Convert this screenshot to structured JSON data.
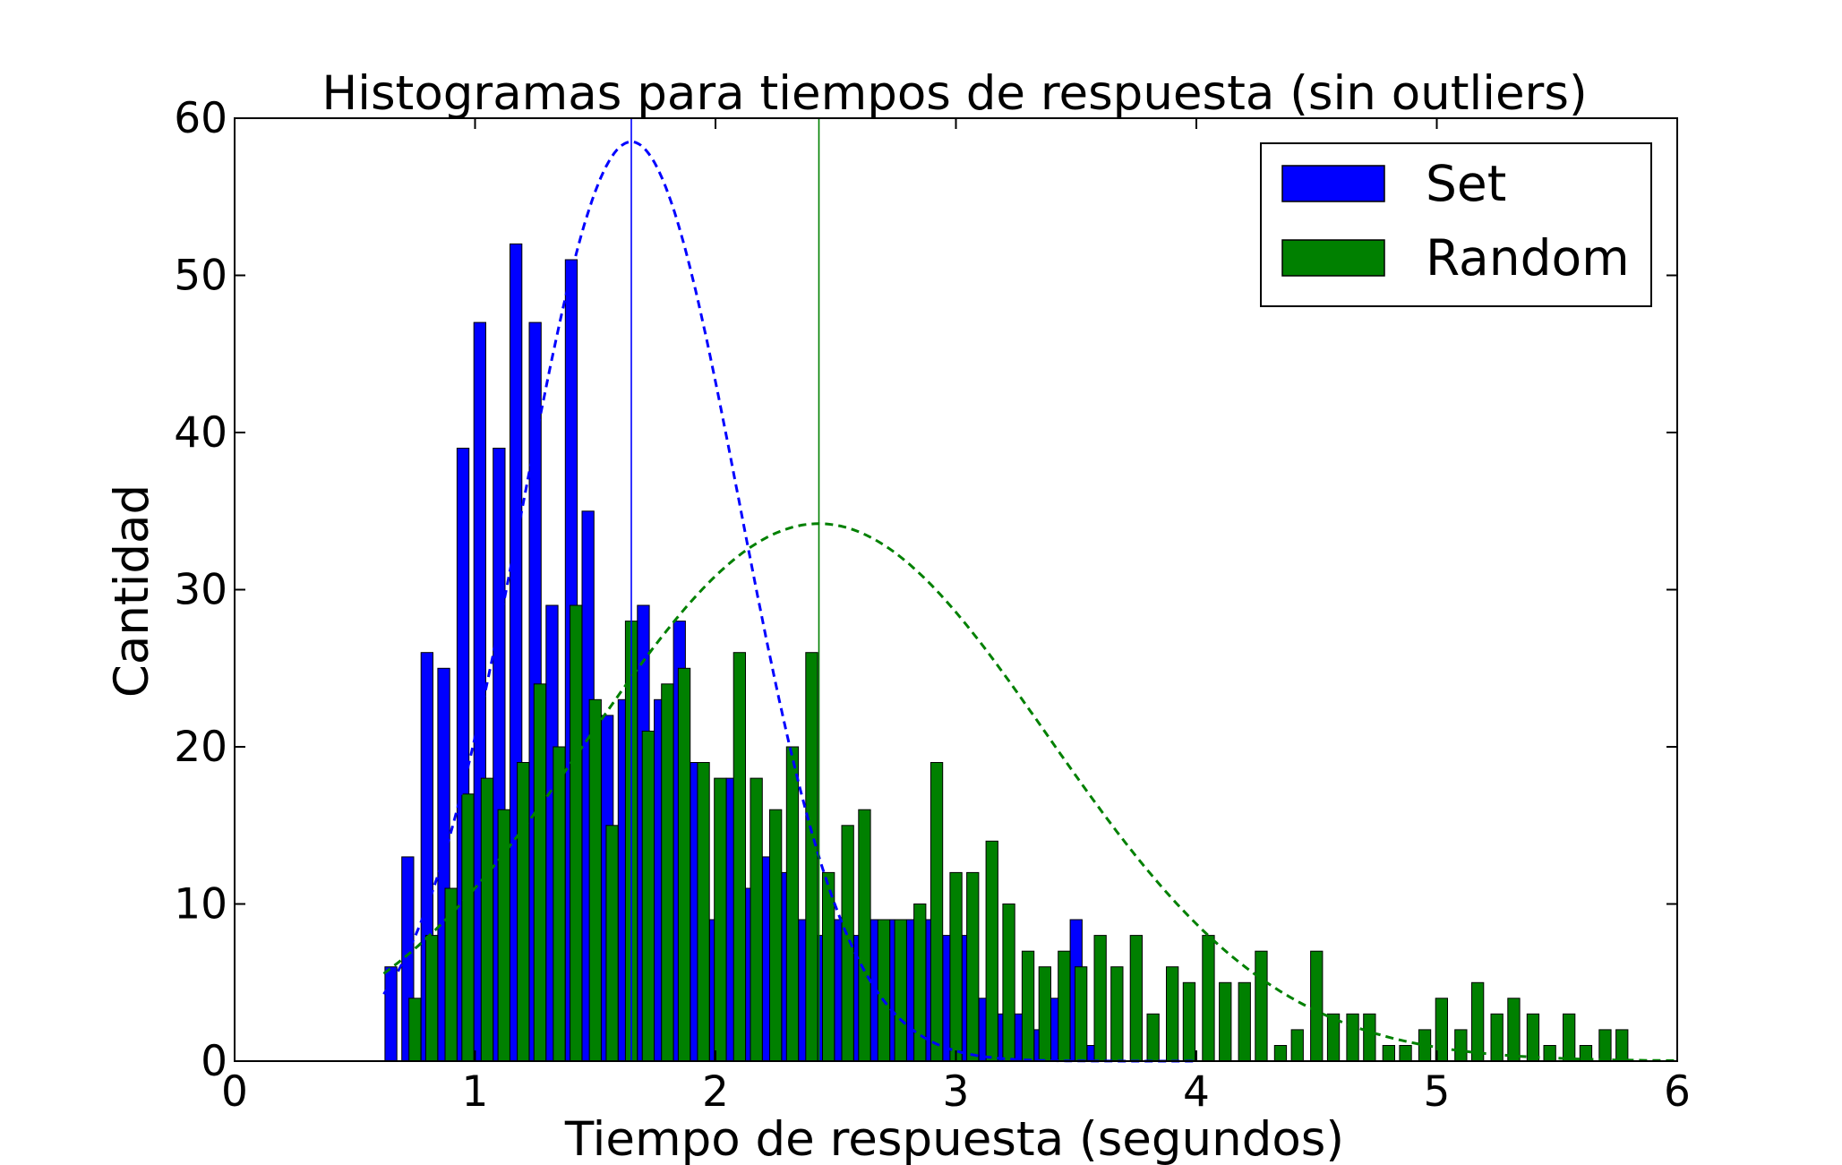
{
  "chart_data": {
    "type": "bar",
    "title": "Histogramas para tiempos de respuesta (sin outliers)",
    "xlabel": "Tiempo de respuesta (segundos)",
    "ylabel": "Cantidad",
    "xlim": [
      0,
      6
    ],
    "ylim": [
      0,
      60
    ],
    "xticks": [
      "0",
      "1",
      "2",
      "3",
      "4",
      "5",
      "6"
    ],
    "yticks": [
      "0",
      "10",
      "20",
      "30",
      "40",
      "50",
      "60"
    ],
    "grid": false,
    "legend_position": "top-right",
    "bin_width": 0.15,
    "series": [
      {
        "name": "Set",
        "color": "#0000ff",
        "bars": [
          {
            "x": 0.65,
            "y": 6
          },
          {
            "x": 0.72,
            "y": 13
          },
          {
            "x": 0.8,
            "y": 26
          },
          {
            "x": 0.87,
            "y": 25
          },
          {
            "x": 0.95,
            "y": 39
          },
          {
            "x": 1.02,
            "y": 47
          },
          {
            "x": 1.1,
            "y": 39
          },
          {
            "x": 1.17,
            "y": 52
          },
          {
            "x": 1.25,
            "y": 47
          },
          {
            "x": 1.32,
            "y": 29
          },
          {
            "x": 1.4,
            "y": 51
          },
          {
            "x": 1.47,
            "y": 35
          },
          {
            "x": 1.55,
            "y": 22
          },
          {
            "x": 1.62,
            "y": 23
          },
          {
            "x": 1.7,
            "y": 29
          },
          {
            "x": 1.77,
            "y": 23
          },
          {
            "x": 1.85,
            "y": 28
          },
          {
            "x": 1.92,
            "y": 19
          },
          {
            "x": 2.0,
            "y": 9
          },
          {
            "x": 2.07,
            "y": 18
          },
          {
            "x": 2.15,
            "y": 11
          },
          {
            "x": 2.22,
            "y": 13
          },
          {
            "x": 2.3,
            "y": 12
          },
          {
            "x": 2.37,
            "y": 9
          },
          {
            "x": 2.45,
            "y": 8
          },
          {
            "x": 2.52,
            "y": 9
          },
          {
            "x": 2.6,
            "y": 8
          },
          {
            "x": 2.67,
            "y": 9
          },
          {
            "x": 2.75,
            "y": 9
          },
          {
            "x": 2.82,
            "y": 9
          },
          {
            "x": 2.9,
            "y": 9
          },
          {
            "x": 2.97,
            "y": 8
          },
          {
            "x": 3.05,
            "y": 8
          },
          {
            "x": 3.12,
            "y": 4
          },
          {
            "x": 3.2,
            "y": 3
          },
          {
            "x": 3.27,
            "y": 3
          },
          {
            "x": 3.35,
            "y": 2
          },
          {
            "x": 3.42,
            "y": 4
          },
          {
            "x": 3.5,
            "y": 9
          },
          {
            "x": 3.57,
            "y": 1
          }
        ],
        "fit_curve": {
          "mean": 1.65,
          "sd": 0.45,
          "peak": 58.5,
          "x_start": 0.62,
          "x_end": 4.0
        },
        "mean_line": 1.65
      },
      {
        "name": "Random",
        "color": "#008000",
        "bars": [
          {
            "x": 0.75,
            "y": 4
          },
          {
            "x": 0.82,
            "y": 8
          },
          {
            "x": 0.9,
            "y": 11
          },
          {
            "x": 0.97,
            "y": 17
          },
          {
            "x": 1.05,
            "y": 18
          },
          {
            "x": 1.12,
            "y": 16
          },
          {
            "x": 1.2,
            "y": 19
          },
          {
            "x": 1.27,
            "y": 24
          },
          {
            "x": 1.35,
            "y": 20
          },
          {
            "x": 1.42,
            "y": 29
          },
          {
            "x": 1.5,
            "y": 23
          },
          {
            "x": 1.57,
            "y": 15
          },
          {
            "x": 1.65,
            "y": 28
          },
          {
            "x": 1.72,
            "y": 21
          },
          {
            "x": 1.8,
            "y": 24
          },
          {
            "x": 1.87,
            "y": 25
          },
          {
            "x": 1.95,
            "y": 19
          },
          {
            "x": 2.02,
            "y": 18
          },
          {
            "x": 2.1,
            "y": 26
          },
          {
            "x": 2.17,
            "y": 18
          },
          {
            "x": 2.25,
            "y": 16
          },
          {
            "x": 2.32,
            "y": 20
          },
          {
            "x": 2.4,
            "y": 26
          },
          {
            "x": 2.47,
            "y": 12
          },
          {
            "x": 2.55,
            "y": 15
          },
          {
            "x": 2.62,
            "y": 16
          },
          {
            "x": 2.7,
            "y": 9
          },
          {
            "x": 2.77,
            "y": 9
          },
          {
            "x": 2.85,
            "y": 10
          },
          {
            "x": 2.92,
            "y": 19
          },
          {
            "x": 3.0,
            "y": 12
          },
          {
            "x": 3.07,
            "y": 12
          },
          {
            "x": 3.15,
            "y": 14
          },
          {
            "x": 3.22,
            "y": 10
          },
          {
            "x": 3.3,
            "y": 7
          },
          {
            "x": 3.37,
            "y": 6
          },
          {
            "x": 3.45,
            "y": 7
          },
          {
            "x": 3.52,
            "y": 6
          },
          {
            "x": 3.6,
            "y": 8
          },
          {
            "x": 3.67,
            "y": 6
          },
          {
            "x": 3.75,
            "y": 8
          },
          {
            "x": 3.82,
            "y": 3
          },
          {
            "x": 3.9,
            "y": 6
          },
          {
            "x": 3.97,
            "y": 5
          },
          {
            "x": 4.05,
            "y": 8
          },
          {
            "x": 4.12,
            "y": 5
          },
          {
            "x": 4.2,
            "y": 5
          },
          {
            "x": 4.27,
            "y": 7
          },
          {
            "x": 4.35,
            "y": 1
          },
          {
            "x": 4.42,
            "y": 2
          },
          {
            "x": 4.5,
            "y": 7
          },
          {
            "x": 4.57,
            "y": 3
          },
          {
            "x": 4.65,
            "y": 3
          },
          {
            "x": 4.72,
            "y": 3
          },
          {
            "x": 4.8,
            "y": 1
          },
          {
            "x": 4.87,
            "y": 1
          },
          {
            "x": 4.95,
            "y": 2
          },
          {
            "x": 5.02,
            "y": 4
          },
          {
            "x": 5.1,
            "y": 2
          },
          {
            "x": 5.17,
            "y": 5
          },
          {
            "x": 5.25,
            "y": 3
          },
          {
            "x": 5.32,
            "y": 4
          },
          {
            "x": 5.4,
            "y": 3
          },
          {
            "x": 5.47,
            "y": 1
          },
          {
            "x": 5.55,
            "y": 3
          },
          {
            "x": 5.62,
            "y": 1
          },
          {
            "x": 5.7,
            "y": 2
          },
          {
            "x": 5.77,
            "y": 2
          }
        ],
        "fit_curve": {
          "mean": 2.43,
          "sd": 0.95,
          "peak": 34.2,
          "x_start": 0.62,
          "x_end": 6.0
        },
        "mean_line": 2.43
      }
    ]
  }
}
